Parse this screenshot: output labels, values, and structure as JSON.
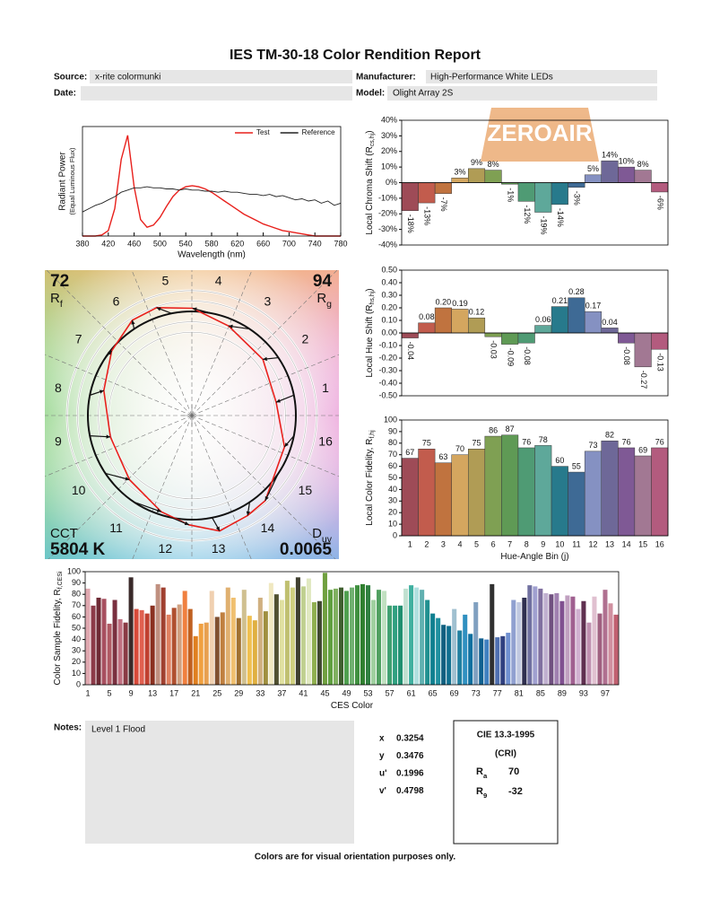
{
  "header": {
    "title": "IES TM-30-18 Color Rendition Report",
    "source_label": "Source:",
    "source": "x-rite colormunki",
    "manufacturer_label": "Manufacturer:",
    "manufacturer": "High-Performance White LEDs",
    "date_label": "Date:",
    "model_label": "Model:",
    "model": "Olight Array 2S"
  },
  "watermark": "ZEROAIR",
  "chart_data": [
    {
      "type": "line",
      "x": [
        380,
        390,
        400,
        410,
        420,
        430,
        440,
        450,
        460,
        470,
        480,
        490,
        500,
        510,
        520,
        530,
        540,
        550,
        560,
        570,
        580,
        590,
        600,
        610,
        620,
        630,
        640,
        650,
        660,
        670,
        680,
        690,
        700,
        710,
        720,
        730,
        740,
        750,
        760,
        770,
        780
      ],
      "series": [
        {
          "name": "Test",
          "color": "#e8201c",
          "values": [
            0,
            0,
            0,
            0.01,
            0.05,
            0.25,
            0.7,
            0.92,
            0.45,
            0.15,
            0.08,
            0.1,
            0.17,
            0.27,
            0.36,
            0.42,
            0.45,
            0.46,
            0.45,
            0.43,
            0.4,
            0.36,
            0.32,
            0.28,
            0.24,
            0.2,
            0.17,
            0.14,
            0.11,
            0.09,
            0.07,
            0.05,
            0.04,
            0.03,
            0.02,
            0.01,
            0,
            0,
            0,
            0,
            0
          ]
        },
        {
          "name": "Reference",
          "color": "#222222",
          "values": [
            0.22,
            0.25,
            0.28,
            0.3,
            0.33,
            0.36,
            0.4,
            0.42,
            0.44,
            0.44,
            0.45,
            0.44,
            0.44,
            0.43,
            0.43,
            0.42,
            0.43,
            0.42,
            0.42,
            0.41,
            0.41,
            0.4,
            0.41,
            0.4,
            0.4,
            0.39,
            0.38,
            0.38,
            0.37,
            0.38,
            0.36,
            0.37,
            0.35,
            0.33,
            0.34,
            0.32,
            0.33,
            0.3,
            0.32,
            0.28,
            0.3
          ]
        }
      ],
      "xlim": [
        380,
        780
      ],
      "xticks": [
        380,
        420,
        460,
        500,
        540,
        580,
        620,
        660,
        700,
        740,
        780
      ],
      "ylim": [
        0,
        1
      ],
      "xlabel": "Wavelength (nm)",
      "ylabel": "Radiant Power",
      "ylabel_note": "(Equal Luminous Flux)",
      "legend": "upper right"
    },
    {
      "type": "vector_graphic",
      "rf": {
        "value": 72,
        "symbol": "R",
        "sub": "f"
      },
      "rg": {
        "value": 94,
        "symbol": "R",
        "sub": "g"
      },
      "cct": {
        "label": "CCT",
        "value": "5804 K"
      },
      "duv": {
        "symbol": "D",
        "sub": "uv",
        "value": 0.0065
      },
      "reference_color": "#111111",
      "test_color": "#e8201c"
    },
    {
      "type": "bar",
      "values": [
        -18,
        -13,
        -7,
        3,
        9,
        8,
        -1,
        -12,
        -19,
        -14,
        -3,
        5,
        14,
        10,
        8,
        -6
      ],
      "value_labels": [
        "-18%",
        "-13%",
        "-7%",
        "3%",
        "9%",
        "8%",
        "-1%",
        "-12%",
        "-19%",
        "-14%",
        "-3%",
        "5%",
        "14%",
        "10%",
        "8%",
        "-6%"
      ],
      "colors": [
        "#9e4b57",
        "#c25c4d",
        "#c0733f",
        "#d4a65f",
        "#b09c55",
        "#7fa053",
        "#5f9a55",
        "#4f9b74",
        "#5ea89a",
        "#277a8c",
        "#3e6a95",
        "#8591c2",
        "#6e6898",
        "#7f5995",
        "#a27893",
        "#b35b7e"
      ],
      "ylim": [
        -40,
        40
      ],
      "yticks": [
        {
          "value": -40,
          "label": "-40%"
        },
        {
          "value": -30,
          "label": "-30%"
        },
        {
          "value": -20,
          "label": "-20%"
        },
        {
          "value": -10,
          "label": "-10%"
        },
        {
          "value": 0,
          "label": "0%"
        },
        {
          "value": 10,
          "label": "10%"
        },
        {
          "value": 20,
          "label": "20%"
        },
        {
          "value": 30,
          "label": "30%"
        },
        {
          "value": 40,
          "label": "40%"
        }
      ],
      "ylabel": {
        "text": "Local Chroma Shift (R",
        "sub": "cs,hj",
        "end": ")"
      }
    },
    {
      "type": "bar",
      "values": [
        -0.04,
        0.08,
        0.2,
        0.19,
        0.12,
        -0.03,
        -0.09,
        -0.08,
        0.06,
        0.21,
        0.28,
        0.17,
        0.04,
        -0.08,
        -0.27,
        -0.13
      ],
      "value_labels": [
        "-0.04",
        "0.08",
        "0.20",
        "0.19",
        "0.12",
        "-0.03",
        "-0.09",
        "-0.08",
        "0.06",
        "0.21",
        "0.28",
        "0.17",
        "0.04",
        "-0.08",
        "-0.27",
        "-0.13"
      ],
      "colors": [
        "#9e4b57",
        "#c25c4d",
        "#c0733f",
        "#d4a65f",
        "#b09c55",
        "#7fa053",
        "#5f9a55",
        "#4f9b74",
        "#5ea89a",
        "#277a8c",
        "#3e6a95",
        "#8591c2",
        "#6e6898",
        "#7f5995",
        "#a27893",
        "#b35b7e"
      ],
      "ylim": [
        -0.5,
        0.5
      ],
      "yticks": [
        {
          "value": -0.5,
          "label": "-0.50"
        },
        {
          "value": -0.4,
          "label": "-0.40"
        },
        {
          "value": -0.3,
          "label": "-0.30"
        },
        {
          "value": -0.2,
          "label": "-0.20"
        },
        {
          "value": -0.1,
          "label": "-0.10"
        },
        {
          "value": 0,
          "label": "0.00"
        },
        {
          "value": 0.1,
          "label": "0.10"
        },
        {
          "value": 0.2,
          "label": "0.20"
        },
        {
          "value": 0.3,
          "label": "0.30"
        },
        {
          "value": 0.4,
          "label": "0.40"
        },
        {
          "value": 0.5,
          "label": "0.50"
        }
      ],
      "ylabel": {
        "text": "Local Hue Shift (R",
        "sub": "hs,hj",
        "end": ")"
      }
    },
    {
      "type": "bar",
      "categories": [
        "1",
        "2",
        "3",
        "4",
        "5",
        "6",
        "7",
        "8",
        "9",
        "10",
        "11",
        "12",
        "13",
        "14",
        "15",
        "16"
      ],
      "values": [
        67,
        75,
        63,
        70,
        75,
        86,
        87,
        76,
        78,
        60,
        55,
        73,
        82,
        76,
        69,
        76
      ],
      "colors": [
        "#9e4b57",
        "#c25c4d",
        "#c0733f",
        "#d4a65f",
        "#b09c55",
        "#7fa053",
        "#5f9a55",
        "#4f9b74",
        "#5ea89a",
        "#277a8c",
        "#3e6a95",
        "#8591c2",
        "#6e6898",
        "#7f5995",
        "#a27893",
        "#b35b7e"
      ],
      "ylim": [
        0,
        100
      ],
      "yticks": [
        0,
        10,
        20,
        30,
        40,
        50,
        60,
        70,
        80,
        90,
        100
      ],
      "xlabel": {
        "text": "Hue-Angle Bin (j)"
      },
      "ylabel": {
        "text": "Local Color Fidelity, R",
        "sub": "f,hj"
      }
    },
    {
      "type": "bar",
      "categories": [
        "1",
        null,
        null,
        null,
        "5",
        null,
        null,
        null,
        "9",
        null,
        null,
        null,
        "13",
        null,
        null,
        null,
        "17",
        null,
        null,
        null,
        "21",
        null,
        null,
        null,
        "25",
        null,
        null,
        null,
        "29",
        null,
        null,
        null,
        "33",
        null,
        null,
        null,
        "37",
        null,
        null,
        null,
        "41",
        null,
        null,
        null,
        "45",
        null,
        null,
        null,
        "49",
        null,
        null,
        null,
        "53",
        null,
        null,
        null,
        "57",
        null,
        null,
        null,
        "61",
        null,
        null,
        null,
        "65",
        null,
        null,
        null,
        "69",
        null,
        null,
        null,
        "73",
        null,
        null,
        null,
        "77",
        null,
        null,
        null,
        "81",
        null,
        null,
        null,
        "85",
        null,
        null,
        null,
        "89",
        null,
        null,
        null,
        "93",
        null,
        null,
        null,
        "97",
        null,
        null
      ],
      "values": [
        85,
        70,
        77,
        76,
        54,
        75,
        58,
        55,
        95,
        67,
        66,
        63,
        70,
        89,
        86,
        62,
        68,
        71,
        83,
        67,
        43,
        54,
        55,
        83,
        60,
        64,
        86,
        77,
        59,
        84,
        61,
        57,
        77,
        65,
        90,
        80,
        75,
        92,
        86,
        95,
        87,
        94,
        73,
        74,
        99,
        84,
        85,
        86,
        83,
        86,
        88,
        89,
        88,
        75,
        84,
        83,
        70,
        70,
        70,
        85,
        88,
        86,
        84,
        75,
        63,
        59,
        53,
        52,
        67,
        48,
        62,
        45,
        73,
        41,
        40,
        89,
        42,
        43,
        46,
        75,
        73,
        77,
        88,
        87,
        85,
        81,
        80,
        81,
        74,
        79,
        78,
        67,
        74,
        55,
        78,
        63,
        84,
        72,
        62
      ],
      "colors": [
        "#e0a8b0",
        "#8c3a48",
        "#6e2a35",
        "#a85060",
        "#b05a64",
        "#7a3040",
        "#c07080",
        "#8a3a44",
        "#3a2a2a",
        "#d84a3a",
        "#e06050",
        "#c04030",
        "#8a3020",
        "#c09080",
        "#a04030",
        "#e08060",
        "#b05030",
        "#d0a080",
        "#f08040",
        "#c06020",
        "#e08020",
        "#f0a040",
        "#e8a050",
        "#f0d0b0",
        "#805030",
        "#c08040",
        "#e0b070",
        "#f0c070",
        "#a07030",
        "#d0c090",
        "#f0c050",
        "#e0b040",
        "#d0b080",
        "#a09040",
        "#f0e8c0",
        "#505030",
        "#e0e0a0",
        "#c0c070",
        "#d0d080",
        "#404030",
        "#c0d090",
        "#e0e8c0",
        "#90b050",
        "#404830",
        "#70a040",
        "#60a040",
        "#80b060",
        "#406030",
        "#50a050",
        "#70b070",
        "#409040",
        "#308030",
        "#308040",
        "#a0d0a0",
        "#50a060",
        "#c0e0c0",
        "#40a070",
        "#30a080",
        "#209070",
        "#c0e0d0",
        "#40b0a0",
        "#b0e0e0",
        "#60b0b0",
        "#209090",
        "#108090",
        "#2090a0",
        "#106080",
        "#107090",
        "#a0c0d0",
        "#2080a0",
        "#3090c0",
        "#1070a0",
        "#80a0c0",
        "#106090",
        "#4080c0",
        "#303030",
        "#5070b0",
        "#304080",
        "#7090d0",
        "#90a0d0",
        "#c0c8e0",
        "#303050",
        "#7070a0",
        "#a0a0d0",
        "#8070a0",
        "#c0b0d0",
        "#705080",
        "#a080b0",
        "#805090",
        "#c0a0c0",
        "#a06090",
        "#d0b0d0",
        "#603050",
        "#c090b0",
        "#e0c0d0",
        "#a06080",
        "#b07090",
        "#d090a0",
        "#c06070"
      ],
      "ylim": [
        0,
        100
      ],
      "yticks": [
        0,
        10,
        20,
        30,
        40,
        50,
        60,
        70,
        80,
        90,
        100
      ],
      "xlabel": {
        "text": "CES Color"
      },
      "ylabel": {
        "text": "Color Sample Fidelity, R",
        "sub": "f,CESi"
      }
    }
  ],
  "notes": {
    "label": "Notes:",
    "text": "Level 1 Flood"
  },
  "chromaticity": [
    [
      "x",
      0.3254
    ],
    [
      "y",
      0.3476
    ],
    [
      "u'",
      0.1996
    ],
    [
      "v'",
      0.4798
    ]
  ],
  "cri": {
    "title": "CIE 13.3-1995",
    "subtitle": "(CRI)",
    "rows": [
      {
        "symbol": "R",
        "sub": "a",
        "value": 70
      },
      {
        "symbol": "R",
        "sub": "9",
        "value": -32
      }
    ]
  },
  "footer": "Colors are for visual orientation purposes only."
}
